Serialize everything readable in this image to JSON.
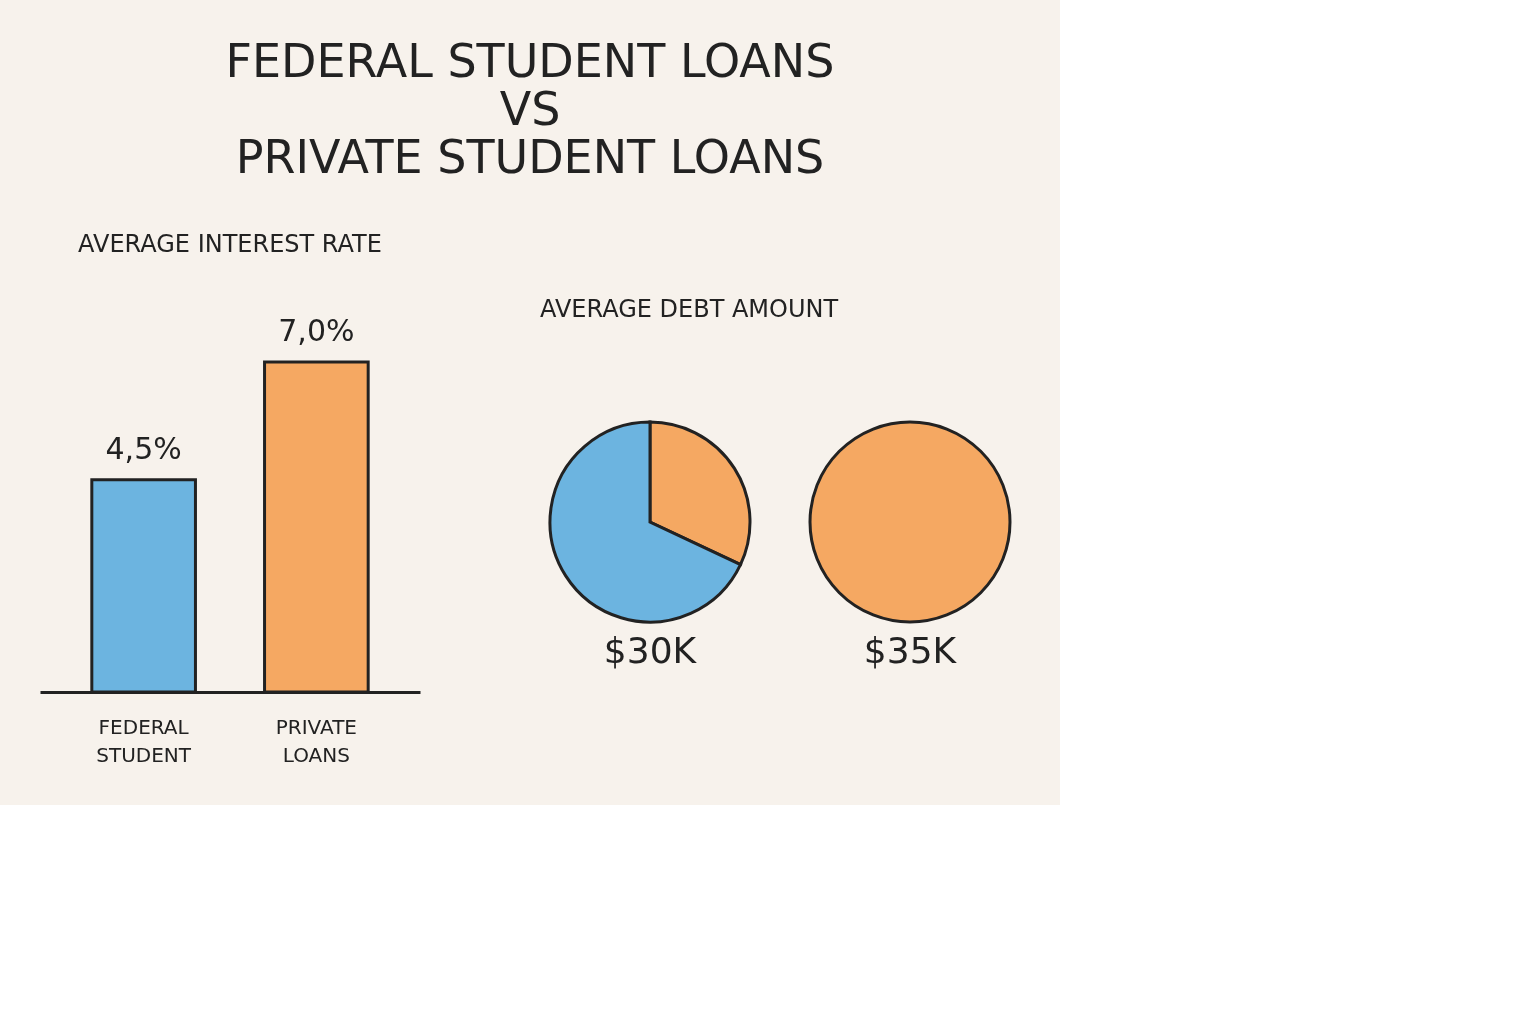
{
  "chart_data": [
    {
      "type": "bar",
      "title": "FEDERAL STUDENT LOANS\nVS\nPRIVATE STUDENT LOANS",
      "subtitle": "AVERAGE INTEREST RATE",
      "categories": [
        "FEDERAL STUDENT",
        "PRIVATE LOANS"
      ],
      "values": [
        4.5,
        7.0
      ],
      "colors": [
        "#6cb4e0",
        "#f5a862"
      ],
      "value_labels": [
        "4,5%",
        "7,0%"
      ]
    },
    {
      "type": "pie",
      "title": "AVERAGE DEBT AMOUNT",
      "categories": [
        null,
        null
      ],
      "values": [
        32,
        68
      ],
      "colors": [
        "#f5a862",
        "#6cb4e0"
      ],
      "annotations": [
        "$30K"
      ]
    },
    {
      "type": "pie",
      "categories": [
        null
      ],
      "values": [
        100
      ],
      "colors": [
        "#f5a862"
      ],
      "annotations": [
        "$35K"
      ]
    }
  ]
}
